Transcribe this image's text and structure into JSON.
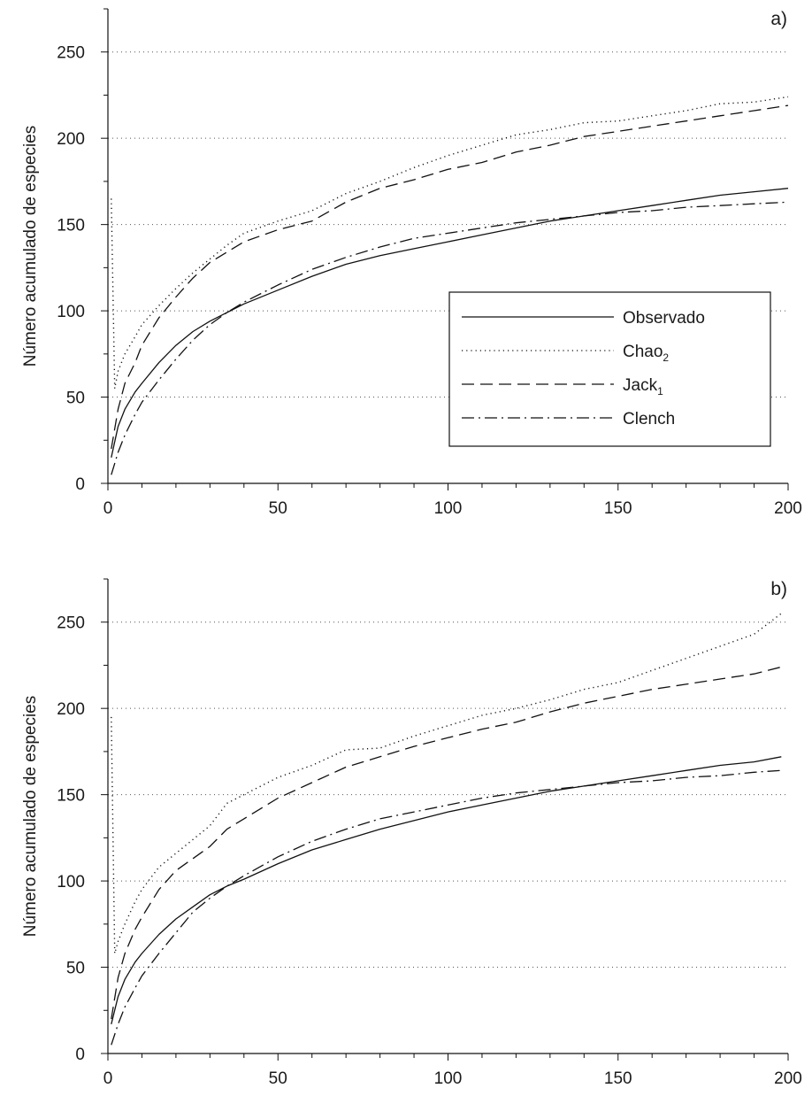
{
  "chart_data": [
    {
      "type": "line",
      "panel_label": "a)",
      "ylabel": "Número acumulado de especies",
      "xlabel": "",
      "xlim": [
        0,
        200
      ],
      "ylim": [
        0,
        275
      ],
      "xticks": [
        0,
        50,
        100,
        150,
        200
      ],
      "yticks": [
        0,
        50,
        100,
        150,
        200,
        250
      ],
      "grid": "horizontal dotted",
      "legend": {
        "placement": "center-right",
        "entries": [
          {
            "label": "Observado",
            "style": "solid"
          },
          {
            "label": "Chao",
            "subscript": "2",
            "style": "dotted"
          },
          {
            "label": "Jack",
            "subscript": "1",
            "style": "dashed"
          },
          {
            "label": "Clench",
            "style": "dashdot"
          }
        ]
      },
      "series": [
        {
          "name": "Observado",
          "style": "solid",
          "x": [
            1,
            3,
            5,
            8,
            10,
            15,
            20,
            25,
            30,
            35,
            40,
            50,
            60,
            70,
            80,
            90,
            100,
            110,
            120,
            130,
            140,
            150,
            160,
            170,
            180,
            190,
            200
          ],
          "y": [
            15,
            33,
            43,
            53,
            58,
            70,
            80,
            88,
            94,
            99,
            104,
            112,
            120,
            127,
            132,
            136,
            140,
            144,
            148,
            152,
            155,
            158,
            161,
            164,
            167,
            169,
            171
          ]
        },
        {
          "name": "Chao2",
          "style": "dotted",
          "x": [
            1,
            2,
            3,
            5,
            8,
            10,
            15,
            20,
            25,
            30,
            35,
            40,
            50,
            60,
            70,
            80,
            90,
            100,
            110,
            120,
            130,
            140,
            150,
            160,
            170,
            180,
            190,
            200
          ],
          "y": [
            165,
            55,
            65,
            75,
            85,
            92,
            103,
            113,
            122,
            130,
            138,
            145,
            152,
            158,
            168,
            175,
            183,
            190,
            196,
            202,
            205,
            209,
            210,
            213,
            216,
            220,
            221,
            224
          ]
        },
        {
          "name": "Jack1",
          "style": "dashed",
          "x": [
            1,
            3,
            5,
            8,
            10,
            15,
            20,
            25,
            30,
            35,
            40,
            50,
            60,
            70,
            80,
            90,
            100,
            110,
            120,
            130,
            140,
            150,
            160,
            170,
            180,
            190,
            200
          ],
          "y": [
            20,
            43,
            58,
            70,
            80,
            96,
            108,
            119,
            128,
            134,
            140,
            147,
            152,
            163,
            171,
            176,
            182,
            186,
            192,
            196,
            201,
            204,
            207,
            210,
            213,
            216,
            219
          ]
        },
        {
          "name": "Clench",
          "style": "dashdot",
          "x": [
            1,
            3,
            5,
            8,
            10,
            15,
            20,
            25,
            30,
            35,
            40,
            50,
            60,
            70,
            80,
            90,
            100,
            110,
            120,
            130,
            140,
            150,
            160,
            170,
            180,
            190,
            200
          ],
          "y": [
            5,
            18,
            28,
            40,
            47,
            60,
            72,
            83,
            92,
            99,
            105,
            115,
            124,
            131,
            137,
            142,
            145,
            148,
            151,
            153,
            155,
            157,
            158,
            160,
            161,
            162,
            163
          ]
        }
      ]
    },
    {
      "type": "line",
      "panel_label": "b)",
      "ylabel": "Número acumulado de especies",
      "xlabel": "",
      "xlim": [
        0,
        200
      ],
      "ylim": [
        0,
        275
      ],
      "xticks": [
        0,
        50,
        100,
        150,
        200
      ],
      "yticks": [
        0,
        50,
        100,
        150,
        200,
        250
      ],
      "grid": "horizontal dotted",
      "series": [
        {
          "name": "Observado",
          "style": "solid",
          "x": [
            1,
            3,
            5,
            8,
            10,
            15,
            20,
            25,
            30,
            35,
            40,
            50,
            60,
            70,
            80,
            90,
            100,
            110,
            120,
            130,
            140,
            150,
            160,
            170,
            180,
            190,
            198
          ],
          "y": [
            17,
            33,
            43,
            53,
            58,
            69,
            78,
            85,
            92,
            97,
            101,
            110,
            118,
            124,
            130,
            135,
            140,
            144,
            148,
            152,
            155,
            158,
            161,
            164,
            167,
            169,
            172
          ]
        },
        {
          "name": "Chao2",
          "style": "dotted",
          "x": [
            1,
            2,
            3,
            5,
            8,
            10,
            15,
            20,
            25,
            30,
            35,
            40,
            50,
            60,
            70,
            80,
            90,
            100,
            110,
            120,
            130,
            140,
            150,
            160,
            170,
            180,
            190,
            198
          ],
          "y": [
            195,
            58,
            65,
            75,
            88,
            95,
            108,
            116,
            124,
            132,
            145,
            150,
            160,
            167,
            176,
            177,
            184,
            190,
            196,
            200,
            205,
            211,
            215,
            222,
            229,
            236,
            243,
            255
          ]
        },
        {
          "name": "Jack1",
          "style": "dashed",
          "x": [
            1,
            3,
            5,
            8,
            10,
            15,
            20,
            25,
            30,
            35,
            40,
            50,
            60,
            70,
            80,
            90,
            100,
            110,
            120,
            130,
            140,
            150,
            160,
            170,
            180,
            190,
            198
          ],
          "y": [
            20,
            44,
            58,
            72,
            79,
            95,
            106,
            113,
            120,
            130,
            136,
            148,
            157,
            166,
            172,
            178,
            183,
            188,
            192,
            198,
            203,
            207,
            211,
            214,
            217,
            220,
            224
          ]
        },
        {
          "name": "Clench",
          "style": "dashdot",
          "x": [
            1,
            3,
            5,
            8,
            10,
            15,
            20,
            25,
            30,
            35,
            40,
            50,
            60,
            70,
            80,
            90,
            100,
            110,
            120,
            130,
            140,
            150,
            160,
            170,
            180,
            190,
            198
          ],
          "y": [
            5,
            17,
            27,
            38,
            45,
            58,
            70,
            82,
            90,
            97,
            103,
            114,
            123,
            130,
            136,
            140,
            144,
            148,
            151,
            153,
            155,
            157,
            158,
            160,
            161,
            163,
            164
          ]
        }
      ]
    }
  ]
}
